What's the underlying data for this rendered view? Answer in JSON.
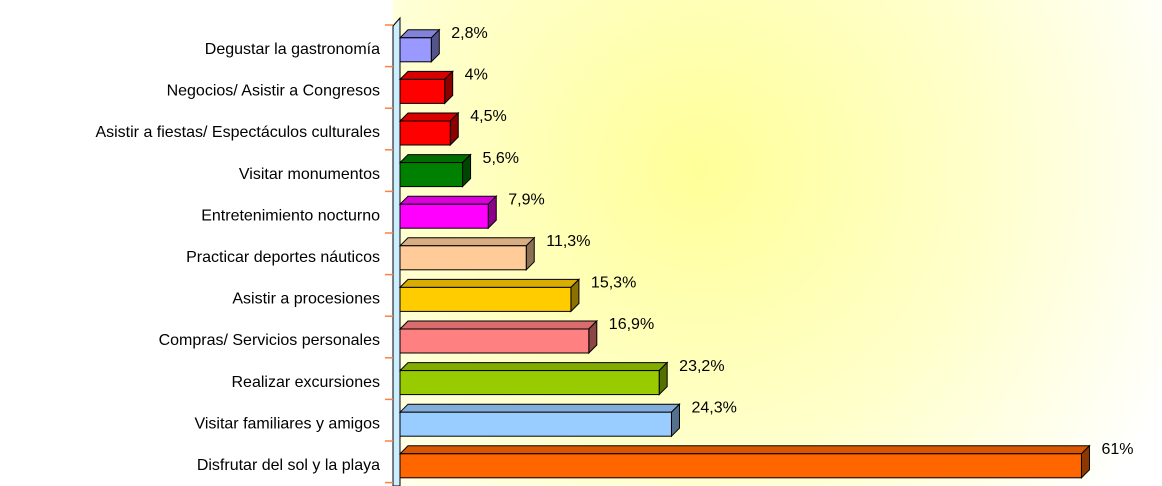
{
  "chart_data": {
    "type": "bar3d-horizontal",
    "categories": [
      "Degustar la gastronomía",
      "Negocios/ Asistir a Congresos",
      "Asistir a fiestas/ Espectáculos culturales",
      "Visitar monumentos",
      "Entretenimiento nocturno",
      "Practicar deportes náuticos",
      "Asistir a procesiones",
      "Compras/ Servicios personales",
      "Realizar excursiones",
      "Visitar familiares y amigos",
      "Disfrutar del sol y la playa"
    ],
    "values": [
      2.8,
      4,
      4.5,
      5.6,
      7.9,
      11.3,
      15.3,
      16.9,
      23.2,
      24.3,
      61
    ],
    "value_labels": [
      "2,8%",
      "4%",
      "4,5%",
      "5,6%",
      "7,9%",
      "11,3%",
      "15,3%",
      "16,9%",
      "23,2%",
      "24,3%",
      "61%"
    ],
    "colors": [
      "#9999ff",
      "#ff0000",
      "#ff0000",
      "#008000",
      "#ff00ff",
      "#ffcc99",
      "#ffcc00",
      "#ff8080",
      "#99cc00",
      "#99ccff",
      "#ff6600"
    ],
    "xlim": [
      0,
      70
    ]
  }
}
